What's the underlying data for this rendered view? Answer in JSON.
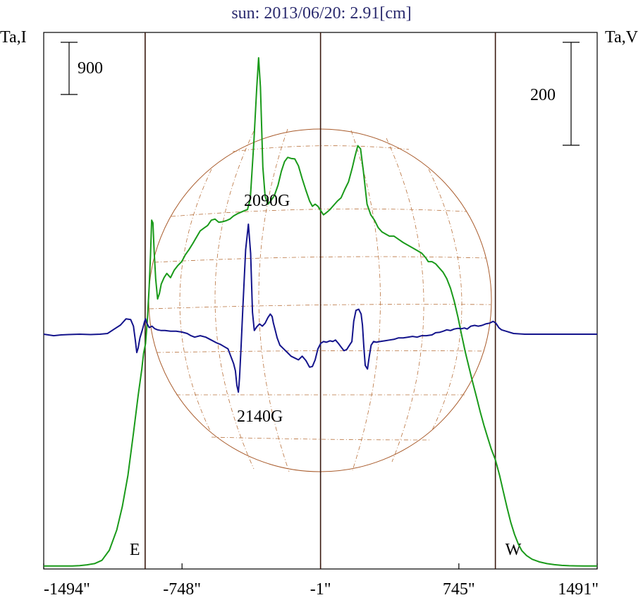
{
  "chart_data": {
    "type": "line",
    "title": "sun: 2013/06/20: 2.91[cm]",
    "left_axis_label": "Ta,I",
    "right_axis_label": "Ta,V",
    "xlim": [
      -1494,
      1491
    ],
    "x_ticks": [
      {
        "value": -1494,
        "label": "-1494\""
      },
      {
        "value": -748,
        "label": "-748\""
      },
      {
        "value": -1,
        "label": "-1\""
      },
      {
        "value": 745,
        "label": "745\""
      },
      {
        "value": 1491,
        "label": "1491\""
      }
    ],
    "limb_markers": [
      {
        "x": -947,
        "label": "E"
      },
      {
        "x": -1,
        "label": ""
      },
      {
        "x": 942,
        "label": "W"
      }
    ],
    "scale_bars": {
      "intensity": {
        "label": "900"
      },
      "polarization": {
        "label": "200"
      }
    },
    "annotations": [
      {
        "text": "2090G"
      },
      {
        "text": "2140G"
      }
    ],
    "series": [
      {
        "key": "I",
        "color": "#1a9a1a",
        "points": [
          [
            -1494,
            2.8
          ],
          [
            -1420,
            3.6
          ],
          [
            -1340,
            3.8
          ],
          [
            -1300,
            10
          ],
          [
            -1260,
            25
          ],
          [
            -1220,
            48
          ],
          [
            -1180,
            110
          ],
          [
            -1140,
            300
          ],
          [
            -1100,
            680
          ],
          [
            -1070,
            1120
          ],
          [
            -1040,
            1700
          ],
          [
            -1010,
            2500
          ],
          [
            -985,
            3200
          ],
          [
            -965,
            3700
          ],
          [
            -955,
            4000
          ],
          [
            -945,
            4180
          ],
          [
            -935,
            4620
          ],
          [
            -925,
            5250
          ],
          [
            -918,
            5850
          ],
          [
            -912,
            6500
          ],
          [
            -905,
            6450
          ],
          [
            -898,
            5900
          ],
          [
            -890,
            5400
          ],
          [
            -880,
            5020
          ],
          [
            -870,
            5120
          ],
          [
            -860,
            5300
          ],
          [
            -845,
            5420
          ],
          [
            -830,
            5500
          ],
          [
            -810,
            5420
          ],
          [
            -790,
            5560
          ],
          [
            -770,
            5650
          ],
          [
            -750,
            5720
          ],
          [
            -730,
            5850
          ],
          [
            -710,
            5950
          ],
          [
            -690,
            6060
          ],
          [
            -670,
            6180
          ],
          [
            -650,
            6300
          ],
          [
            -630,
            6350
          ],
          [
            -610,
            6400
          ],
          [
            -590,
            6500
          ],
          [
            -570,
            6520
          ],
          [
            -550,
            6460
          ],
          [
            -530,
            6470
          ],
          [
            -510,
            6490
          ],
          [
            -490,
            6520
          ],
          [
            -470,
            6580
          ],
          [
            -450,
            6620
          ],
          [
            -430,
            6650
          ],
          [
            -410,
            6680
          ],
          [
            -395,
            6700
          ],
          [
            -380,
            6900
          ],
          [
            -360,
            8000
          ],
          [
            -345,
            9000
          ],
          [
            -335,
            9550
          ],
          [
            -325,
            9000
          ],
          [
            -312,
            7500
          ],
          [
            -300,
            6950
          ],
          [
            -285,
            6800
          ],
          [
            -270,
            6860
          ],
          [
            -250,
            6960
          ],
          [
            -230,
            7160
          ],
          [
            -212,
            7420
          ],
          [
            -195,
            7600
          ],
          [
            -178,
            7680
          ],
          [
            -160,
            7660
          ],
          [
            -140,
            7650
          ],
          [
            -120,
            7520
          ],
          [
            -100,
            7280
          ],
          [
            -80,
            7060
          ],
          [
            -60,
            6860
          ],
          [
            -45,
            6760
          ],
          [
            -30,
            6800
          ],
          [
            -15,
            6760
          ],
          [
            0,
            6680
          ],
          [
            15,
            6600
          ],
          [
            30,
            6640
          ],
          [
            50,
            6700
          ],
          [
            70,
            6780
          ],
          [
            90,
            6860
          ],
          [
            110,
            6920
          ],
          [
            130,
            7080
          ],
          [
            150,
            7220
          ],
          [
            170,
            7480
          ],
          [
            185,
            7700
          ],
          [
            200,
            7900
          ],
          [
            215,
            7840
          ],
          [
            230,
            7420
          ],
          [
            250,
            6800
          ],
          [
            270,
            6600
          ],
          [
            290,
            6500
          ],
          [
            310,
            6360
          ],
          [
            330,
            6280
          ],
          [
            350,
            6240
          ],
          [
            370,
            6200
          ],
          [
            395,
            6200
          ],
          [
            420,
            6140
          ],
          [
            445,
            6080
          ],
          [
            470,
            6030
          ],
          [
            495,
            5980
          ],
          [
            520,
            5930
          ],
          [
            545,
            5880
          ],
          [
            565,
            5800
          ],
          [
            580,
            5720
          ],
          [
            600,
            5720
          ],
          [
            620,
            5680
          ],
          [
            640,
            5600
          ],
          [
            660,
            5520
          ],
          [
            680,
            5400
          ],
          [
            700,
            5220
          ],
          [
            720,
            4980
          ],
          [
            740,
            4680
          ],
          [
            760,
            4340
          ],
          [
            780,
            4020
          ],
          [
            800,
            3730
          ],
          [
            820,
            3450
          ],
          [
            840,
            3180
          ],
          [
            860,
            2900
          ],
          [
            880,
            2650
          ],
          [
            900,
            2420
          ],
          [
            920,
            2200
          ],
          [
            942,
            2000
          ],
          [
            965,
            1700
          ],
          [
            985,
            1400
          ],
          [
            1005,
            1100
          ],
          [
            1025,
            820
          ],
          [
            1045,
            600
          ],
          [
            1065,
            420
          ],
          [
            1085,
            290
          ],
          [
            1110,
            200
          ],
          [
            1140,
            130
          ],
          [
            1180,
            80
          ],
          [
            1220,
            48
          ],
          [
            1260,
            28
          ],
          [
            1300,
            15
          ],
          [
            1340,
            8
          ],
          [
            1380,
            5
          ],
          [
            1420,
            4
          ],
          [
            1460,
            3
          ],
          [
            1491,
            3
          ]
        ]
      },
      {
        "key": "V",
        "color": "#14148c",
        "points": [
          [
            -1494,
            0
          ],
          [
            -1440,
            -4
          ],
          [
            -1400,
            -2
          ],
          [
            -1360,
            -1
          ],
          [
            -1300,
            0
          ],
          [
            -1240,
            -1
          ],
          [
            -1190,
            0
          ],
          [
            -1150,
            2
          ],
          [
            -1120,
            12
          ],
          [
            -1080,
            25
          ],
          [
            -1050,
            42
          ],
          [
            -1025,
            40
          ],
          [
            -1010,
            22
          ],
          [
            -1000,
            -16
          ],
          [
            -992,
            -50
          ],
          [
            -985,
            -38
          ],
          [
            -975,
            -10
          ],
          [
            -960,
            15
          ],
          [
            -950,
            35
          ],
          [
            -945,
            42
          ],
          [
            -938,
            30
          ],
          [
            -925,
            18
          ],
          [
            -910,
            22
          ],
          [
            -895,
            15
          ],
          [
            -880,
            12
          ],
          [
            -860,
            10
          ],
          [
            -840,
            10
          ],
          [
            -810,
            8
          ],
          [
            -780,
            8
          ],
          [
            -750,
            6
          ],
          [
            -720,
            2
          ],
          [
            -700,
            -4
          ],
          [
            -680,
            -8
          ],
          [
            -650,
            -4
          ],
          [
            -620,
            -8
          ],
          [
            -590,
            -16
          ],
          [
            -560,
            -24
          ],
          [
            -540,
            -28
          ],
          [
            -520,
            -34
          ],
          [
            -500,
            -40
          ],
          [
            -485,
            -60
          ],
          [
            -470,
            -80
          ],
          [
            -460,
            -100
          ],
          [
            -452,
            -140
          ],
          [
            -444,
            -158
          ],
          [
            -438,
            -120
          ],
          [
            -430,
            -40
          ],
          [
            -420,
            70
          ],
          [
            -405,
            230
          ],
          [
            -390,
            300
          ],
          [
            -378,
            220
          ],
          [
            -368,
            60
          ],
          [
            -358,
            10
          ],
          [
            -345,
            20
          ],
          [
            -330,
            28
          ],
          [
            -315,
            22
          ],
          [
            -300,
            30
          ],
          [
            -285,
            45
          ],
          [
            -272,
            55
          ],
          [
            -262,
            48
          ],
          [
            -255,
            30
          ],
          [
            -245,
            10
          ],
          [
            -235,
            -10
          ],
          [
            -220,
            -30
          ],
          [
            -200,
            -40
          ],
          [
            -180,
            -50
          ],
          [
            -160,
            -60
          ],
          [
            -140,
            -65
          ],
          [
            -120,
            -70
          ],
          [
            -100,
            -60
          ],
          [
            -80,
            -72
          ],
          [
            -60,
            -90
          ],
          [
            -45,
            -88
          ],
          [
            -30,
            -70
          ],
          [
            -15,
            -40
          ],
          [
            0,
            -25
          ],
          [
            15,
            -20
          ],
          [
            30,
            -22
          ],
          [
            50,
            -18
          ],
          [
            65,
            -20
          ],
          [
            80,
            -16
          ],
          [
            95,
            -25
          ],
          [
            110,
            -35
          ],
          [
            125,
            -45
          ],
          [
            140,
            -42
          ],
          [
            155,
            -30
          ],
          [
            168,
            -20
          ],
          [
            178,
            35
          ],
          [
            190,
            65
          ],
          [
            205,
            68
          ],
          [
            218,
            55
          ],
          [
            225,
            25
          ],
          [
            232,
            -30
          ],
          [
            240,
            -85
          ],
          [
            252,
            -95
          ],
          [
            262,
            -60
          ],
          [
            272,
            -30
          ],
          [
            285,
            -20
          ],
          [
            300,
            -22
          ],
          [
            320,
            -20
          ],
          [
            345,
            -18
          ],
          [
            370,
            -16
          ],
          [
            395,
            -14
          ],
          [
            420,
            -10
          ],
          [
            445,
            -10
          ],
          [
            470,
            -8
          ],
          [
            495,
            -6
          ],
          [
            520,
            -8
          ],
          [
            545,
            -4
          ],
          [
            570,
            -4
          ],
          [
            600,
            -2
          ],
          [
            620,
            4
          ],
          [
            640,
            5
          ],
          [
            660,
            8
          ],
          [
            680,
            12
          ],
          [
            700,
            10
          ],
          [
            720,
            14
          ],
          [
            740,
            16
          ],
          [
            760,
            15
          ],
          [
            775,
            17
          ],
          [
            790,
            14
          ],
          [
            810,
            22
          ],
          [
            830,
            24
          ],
          [
            850,
            22
          ],
          [
            870,
            24
          ],
          [
            890,
            28
          ],
          [
            910,
            30
          ],
          [
            930,
            35
          ],
          [
            945,
            30
          ],
          [
            960,
            18
          ],
          [
            975,
            12
          ],
          [
            1000,
            8
          ],
          [
            1040,
            2
          ],
          [
            1100,
            0
          ],
          [
            1180,
            0
          ],
          [
            1260,
            0
          ],
          [
            1350,
            0
          ],
          [
            1430,
            0
          ],
          [
            1491,
            0
          ]
        ]
      }
    ]
  }
}
